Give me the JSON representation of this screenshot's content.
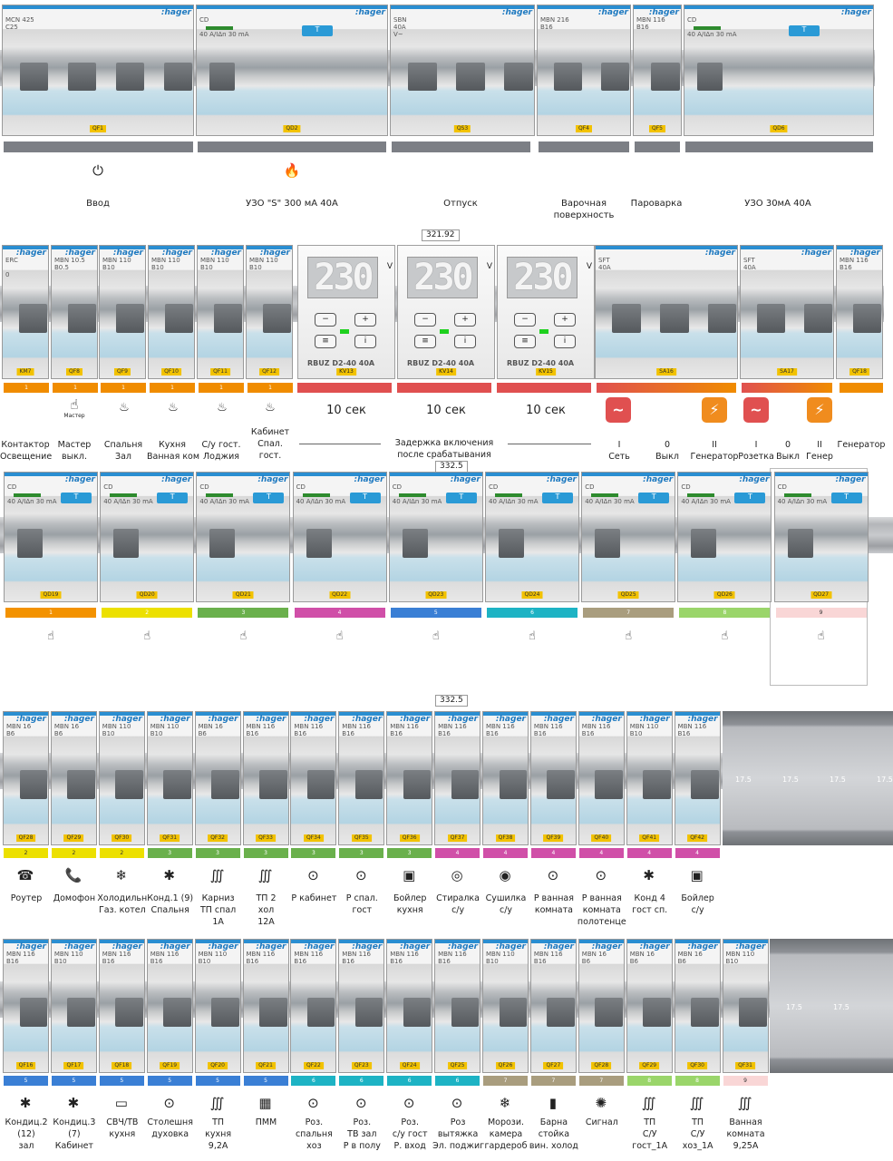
{
  "row1": {
    "breakers": [
      {
        "model": "MCN 425\nC25",
        "tag": "QF1"
      },
      {
        "model": "CD\n\n40 A/IΔn 30 mA",
        "tag": "QD2",
        "rcd": true
      },
      {
        "model": "SBN\n40A\nV~",
        "tag": "QS3"
      },
      {
        "model": "MBN 216\nB16",
        "tag": "QF4"
      },
      {
        "model": "MBN 116\nB16",
        "tag": "QF5"
      },
      {
        "model": "CD\n\n40 A/IΔn 30 mA",
        "tag": "QD6",
        "rcd": true
      }
    ],
    "labels": [
      "Ввод",
      "УЗО \"S\" 300 мА 40А",
      "Отпуск",
      "Варочная\nповерхность",
      "Пароварка",
      "УЗО 30мА 40А"
    ],
    "icons": [
      "⏻",
      "🔥"
    ]
  },
  "row2": {
    "zoom": "321.92",
    "breakers": [
      {
        "model": "ERC\n\n0",
        "tag": "KM7"
      },
      {
        "model": "MBN 10.5\nB0.5",
        "tag": "QF8"
      },
      {
        "model": "MBN 110\nB10",
        "tag": "QF9"
      },
      {
        "model": "MBN 110\nB10",
        "tag": "QF10"
      },
      {
        "model": "MBN 110\nB10",
        "tag": "QF11"
      },
      {
        "model": "MBN 110\nB10",
        "tag": "QF12"
      }
    ],
    "relays": [
      {
        "display": "230",
        "unit": "V",
        "brand": "RBUZ D2-40 40A",
        "tag": "KV13",
        "delay": "10 сек"
      },
      {
        "display": "230",
        "unit": "V",
        "brand": "RBUZ D2-40 40A",
        "tag": "KV14",
        "delay": "10 сек"
      },
      {
        "display": "230",
        "unit": "V",
        "brand": "RBUZ D2-40 40A",
        "tag": "KV15",
        "delay": "10 сек"
      }
    ],
    "switches": [
      {
        "model": "SFT\n40A",
        "tag": "SA16"
      },
      {
        "model": "SFT\n40A",
        "tag": "SA17"
      },
      {
        "model": "MBN 116\nB16",
        "tag": "QF18"
      }
    ],
    "bar_numbers": [
      "1",
      "1",
      "1",
      "1",
      "1",
      "1"
    ],
    "icon_master": "Мастер",
    "labels": [
      "Контактор\nОсвещение",
      "Мастер\nвыкл.",
      "Спальня\nЗал",
      "Кухня\nВанная ком",
      "С/у гост.\nЛоджия",
      "Кабинет\nСпал.\nгост."
    ],
    "delay_caption": "Задержка включения\nпосле срабатывания",
    "switch_positions": [
      "I\nСеть",
      "0\nВыкл",
      "II\nГенератор",
      "I\nРозетка",
      "0\nВыкл",
      "II\nГенер"
    ],
    "generator_label": "Генератор",
    "colors": {
      "orange": "#f08c00",
      "red": "#e05050",
      "grid": "#e05b5b",
      "gen": "#f08c1e"
    }
  },
  "row3": {
    "zoom": "332.5",
    "breakers": [
      {
        "model": "CD\n\n40 A/IΔn 30 mA",
        "tag": "QD19",
        "color": "#f39200",
        "num": "1"
      },
      {
        "model": "CD\n\n40 A/IΔn 30 mA",
        "tag": "QD20",
        "color": "#ece000",
        "num": "2"
      },
      {
        "model": "CD\n\n40 A/IΔn 30 mA",
        "tag": "QD21",
        "color": "#6ab04c",
        "num": "3"
      },
      {
        "model": "CD\n\n40 A/IΔn 30 mA",
        "tag": "QD22",
        "color": "#d04fa8",
        "num": "4"
      },
      {
        "model": "CD\n\n40 A/IΔn 30 mA",
        "tag": "QD23",
        "color": "#3a7fd5",
        "num": "5"
      },
      {
        "model": "CD\n\n40 A/IΔn 30 mA",
        "tag": "QD24",
        "color": "#1db3c4",
        "num": "6"
      },
      {
        "model": "CD\n\n40 A/IΔn 30 mA",
        "tag": "QD25",
        "color": "#a99d7e",
        "num": "7"
      },
      {
        "model": "CD\n\n40 A/IΔn 30 mA",
        "tag": "QD26",
        "color": "#9ad56a",
        "num": "8"
      },
      {
        "model": "CD\n\n40 A/IΔn 30 mA",
        "tag": "QD27",
        "color": "#f9d6d6",
        "num": "9"
      }
    ]
  },
  "row4": {
    "zoom": "332.5",
    "breakers": [
      {
        "model": "MBN 16\nB6",
        "tag": "QF28",
        "num": "2",
        "color": "#ece000",
        "icon": "☎",
        "label": "Роутер"
      },
      {
        "model": "MBN 16\nB6",
        "tag": "QF29",
        "num": "2",
        "color": "#ece000",
        "icon": "📞",
        "label": "Домофон"
      },
      {
        "model": "MBN 110\nB10",
        "tag": "QF30",
        "num": "2",
        "color": "#ece000",
        "icon": "❄",
        "label": "Холодильн\nГаз. котел"
      },
      {
        "model": "MBN 110\nB10",
        "tag": "QF31",
        "num": "3",
        "color": "#6ab04c",
        "icon": "✱",
        "label": "Конд.1 (9)\nСпальня"
      },
      {
        "model": "MBN 16\nB6",
        "tag": "QF32",
        "num": "3",
        "color": "#6ab04c",
        "icon": "∭",
        "label": "Карниз\nТП спал\n1А"
      },
      {
        "model": "MBN 116\nB16",
        "tag": "QF33",
        "num": "3",
        "color": "#6ab04c",
        "icon": "∭",
        "label": "ТП 2\nхол\n12А"
      },
      {
        "model": "MBN 116\nB16",
        "tag": "QF34",
        "num": "3",
        "color": "#6ab04c",
        "icon": "⊙",
        "label": "Р кабинет"
      },
      {
        "model": "MBN 116\nB16",
        "tag": "QF35",
        "num": "3",
        "color": "#6ab04c",
        "icon": "⊙",
        "label": "Р спал.\nгост"
      },
      {
        "model": "MBN 116\nB16",
        "tag": "QF36",
        "num": "3",
        "color": "#6ab04c",
        "icon": "▣",
        "label": "Бойлер\nкухня"
      },
      {
        "model": "MBN 116\nB16",
        "tag": "QF37",
        "num": "4",
        "color": "#d04fa8",
        "icon": "◎",
        "label": "Стиралка\nс/у"
      },
      {
        "model": "MBN 116\nB16",
        "tag": "QF38",
        "num": "4",
        "color": "#d04fa8",
        "icon": "◉",
        "label": "Сушилка\nс/у"
      },
      {
        "model": "MBN 116\nB16",
        "tag": "QF39",
        "num": "4",
        "color": "#d04fa8",
        "icon": "⊙",
        "label": "Р ванная\nкомната"
      },
      {
        "model": "MBN 116\nB16",
        "tag": "QF40",
        "num": "4",
        "color": "#d04fa8",
        "icon": "⊙",
        "label": "Р ванная\nкомната\nполотенце"
      },
      {
        "model": "MBN 110\nB10",
        "tag": "QF41",
        "num": "4",
        "color": "#d04fa8",
        "icon": "✱",
        "label": "Конд 4\nгост сп."
      },
      {
        "model": "MBN 116\nB16",
        "tag": "QF42",
        "num": "4",
        "color": "#d04fa8",
        "icon": "▣",
        "label": "Бойлер\nс/у"
      }
    ],
    "filler": [
      "17.5",
      "17.5",
      "17.5",
      "17.5"
    ]
  },
  "row5": {
    "zoom": "",
    "breakers": [
      {
        "model": "MBN 116\nB16",
        "tag": "QF16",
        "num": "5",
        "color": "#3a7fd5",
        "icon": "✱",
        "label": "Кондиц.2\n(12)\nзал"
      },
      {
        "model": "MBN 110\nB10",
        "tag": "QF17",
        "num": "5",
        "color": "#3a7fd5",
        "icon": "✱",
        "label": "Кондиц.3\n(7)\nКабинет"
      },
      {
        "model": "MBN 116\nB16",
        "tag": "QF18",
        "num": "5",
        "color": "#3a7fd5",
        "icon": "▭",
        "label": "СВЧ/ТВ\nкухня"
      },
      {
        "model": "MBN 116\nB16",
        "tag": "QF19",
        "num": "5",
        "color": "#3a7fd5",
        "icon": "⊙",
        "label": "Столешня\nдуховка"
      },
      {
        "model": "MBN 110\nB10",
        "tag": "QF20",
        "num": "5",
        "color": "#3a7fd5",
        "icon": "∭",
        "label": "ТП\nкухня\n9,2А"
      },
      {
        "model": "MBN 116\nB16",
        "tag": "QF21",
        "num": "5",
        "color": "#3a7fd5",
        "icon": "▦",
        "label": "ПММ"
      },
      {
        "model": "MBN 116\nB16",
        "tag": "QF22",
        "num": "6",
        "color": "#1db3c4",
        "icon": "⊙",
        "label": "Роз.\nспальня\nхоз"
      },
      {
        "model": "MBN 116\nB16",
        "tag": "QF23",
        "num": "6",
        "color": "#1db3c4",
        "icon": "⊙",
        "label": "Роз.\nТВ зал\nР в полу"
      },
      {
        "model": "MBN 116\nB16",
        "tag": "QF24",
        "num": "6",
        "color": "#1db3c4",
        "icon": "⊙",
        "label": "Роз.\nс/у гост\nР. вход"
      },
      {
        "model": "MBN 116\nB16",
        "tag": "QF25",
        "num": "6",
        "color": "#1db3c4",
        "icon": "⊙",
        "label": "Роз\nвытяжка\nЭл. поджиг"
      },
      {
        "model": "MBN 110\nB10",
        "tag": "QF26",
        "num": "7",
        "color": "#a99d7e",
        "icon": "❄",
        "label": "Морози.\nкамера\nгардероб"
      },
      {
        "model": "MBN 116\nB16",
        "tag": "QF27",
        "num": "7",
        "color": "#a99d7e",
        "icon": "▮",
        "label": "Барна\nстойка\nвин. холод"
      },
      {
        "model": "MBN 16\nB6",
        "tag": "QF28",
        "num": "7",
        "color": "#a99d7e",
        "icon": "✺",
        "label": "Сигнал"
      },
      {
        "model": "MBN 16\nB6",
        "tag": "QF29",
        "num": "8",
        "color": "#9ad56a",
        "icon": "∭",
        "label": "ТП\nС/У\nгост_1А"
      },
      {
        "model": "MBN 16\nB6",
        "tag": "QF30",
        "num": "8",
        "color": "#9ad56a",
        "icon": "∭",
        "label": "ТП\nС/У\nхоз_1А"
      },
      {
        "model": "MBN 110\nB10",
        "tag": "QF31",
        "num": "9",
        "color": "#f9d6d6",
        "icon": "∭",
        "label": "Ванная\nкомната\n9,25А"
      }
    ],
    "filler": [
      "17.5",
      "17.5"
    ]
  }
}
